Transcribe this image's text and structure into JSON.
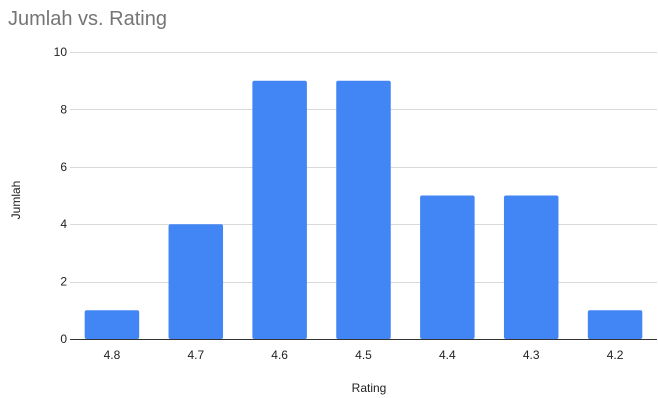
{
  "chart_data": {
    "type": "bar",
    "title": "Jumlah vs. Rating",
    "xlabel": "Rating",
    "ylabel": "Jumlah",
    "categories": [
      "4.8",
      "4.7",
      "4.6",
      "4.5",
      "4.4",
      "4.3",
      "4.2"
    ],
    "values": [
      1,
      4,
      9,
      9,
      5,
      5,
      1
    ],
    "ylim": [
      0,
      10
    ],
    "yticks": [
      "0",
      "2",
      "4",
      "6",
      "8",
      "10"
    ],
    "grid": true,
    "legend": "none",
    "bar_color": "#4285f4"
  }
}
